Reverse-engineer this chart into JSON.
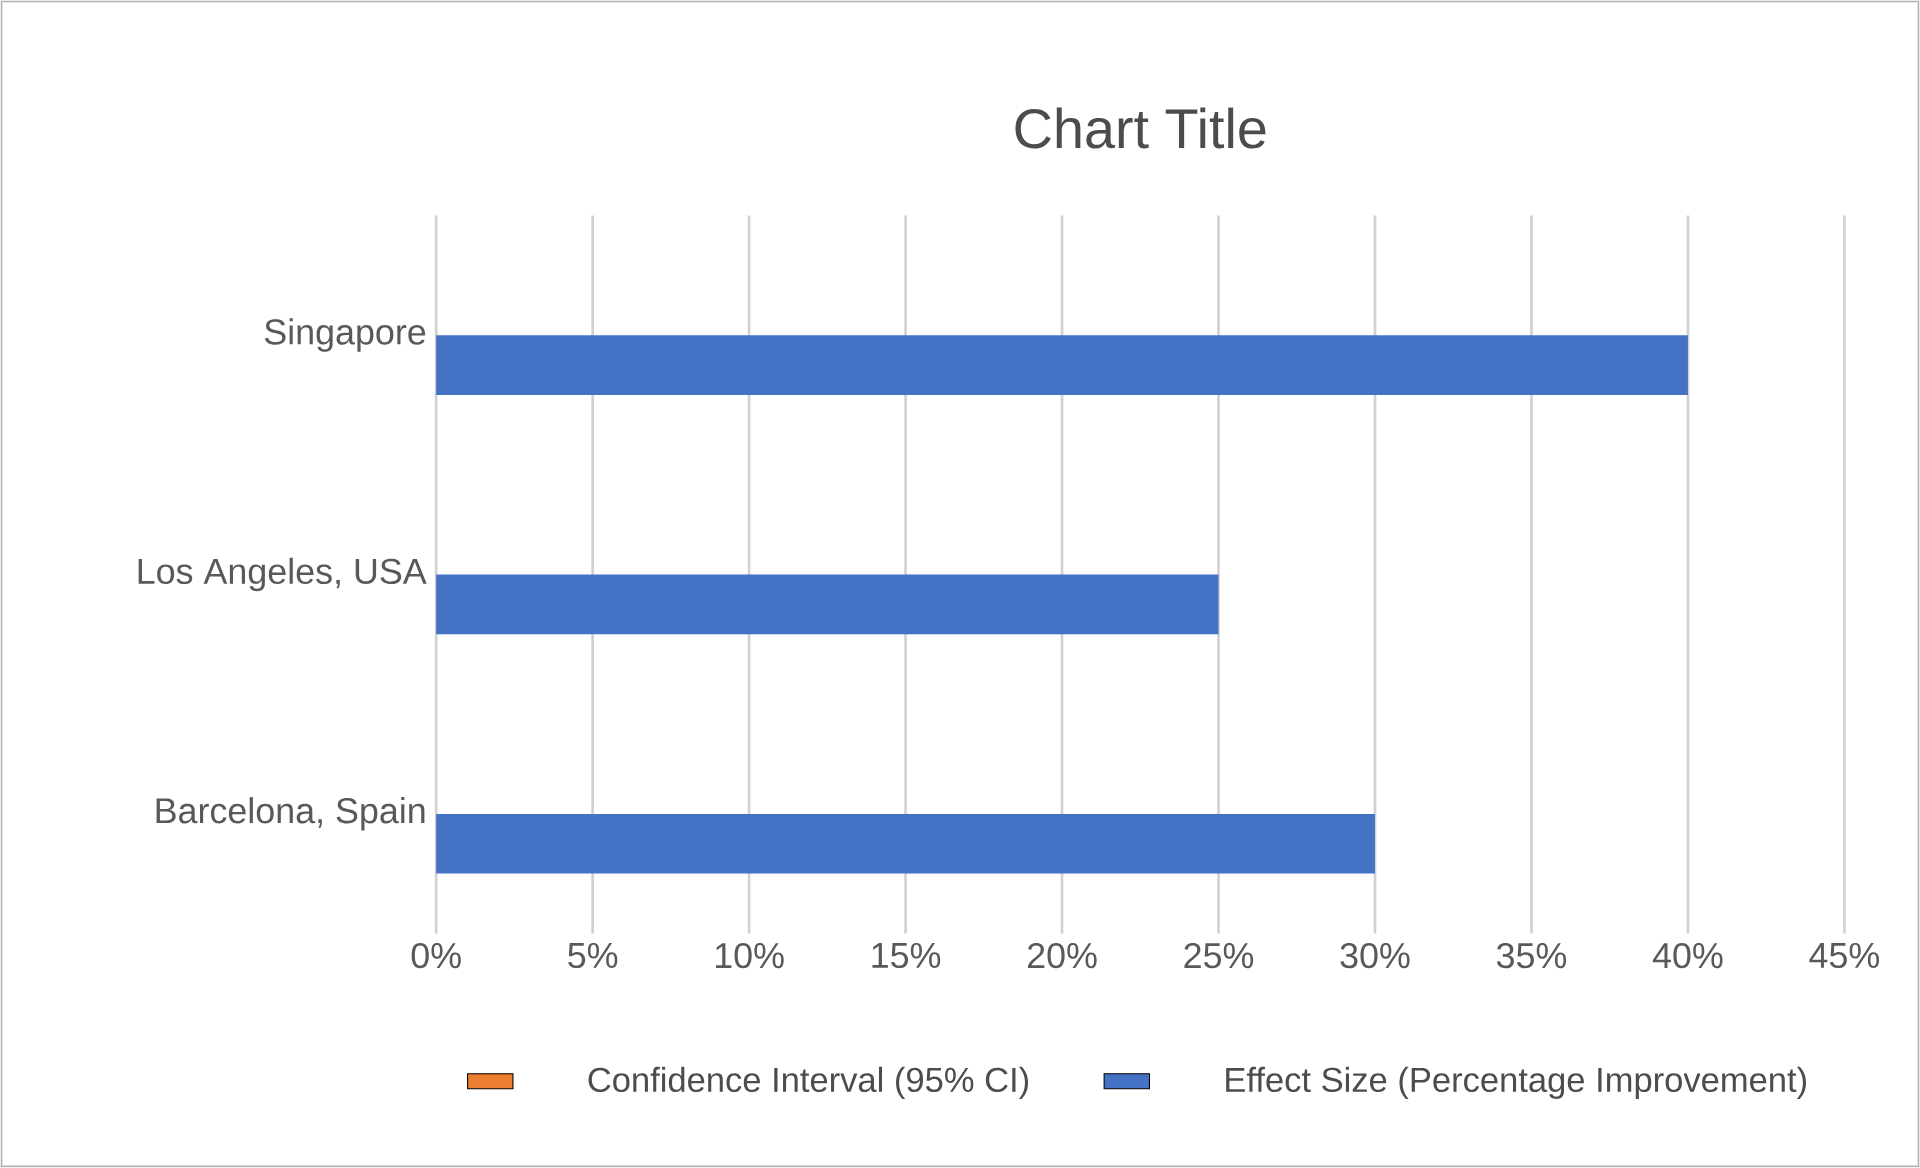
{
  "chart_data": {
    "type": "bar",
    "orientation": "horizontal",
    "title": "Chart Title",
    "categories": [
      "Singapore",
      "Los Angeles, USA",
      "Barcelona, Spain"
    ],
    "series": [
      {
        "name": "Confidence Interval (95% CI)",
        "color": "#ed7d31",
        "values": [
          null,
          null,
          null
        ]
      },
      {
        "name": "Effect Size (Percentage Improvement)",
        "color": "#4472c4",
        "values": [
          40,
          25,
          30
        ]
      }
    ],
    "xlim": [
      0,
      45
    ],
    "xticks": [
      {
        "value": 0,
        "label": "0%"
      },
      {
        "value": 5,
        "label": "5%"
      },
      {
        "value": 10,
        "label": "10%"
      },
      {
        "value": 15,
        "label": "15%"
      },
      {
        "value": 20,
        "label": "20%"
      },
      {
        "value": 25,
        "label": "25%"
      },
      {
        "value": 30,
        "label": "30%"
      },
      {
        "value": 35,
        "label": "35%"
      },
      {
        "value": 40,
        "label": "40%"
      },
      {
        "value": 45,
        "label": "45%"
      }
    ],
    "grid": "x",
    "legend": "bottom"
  }
}
